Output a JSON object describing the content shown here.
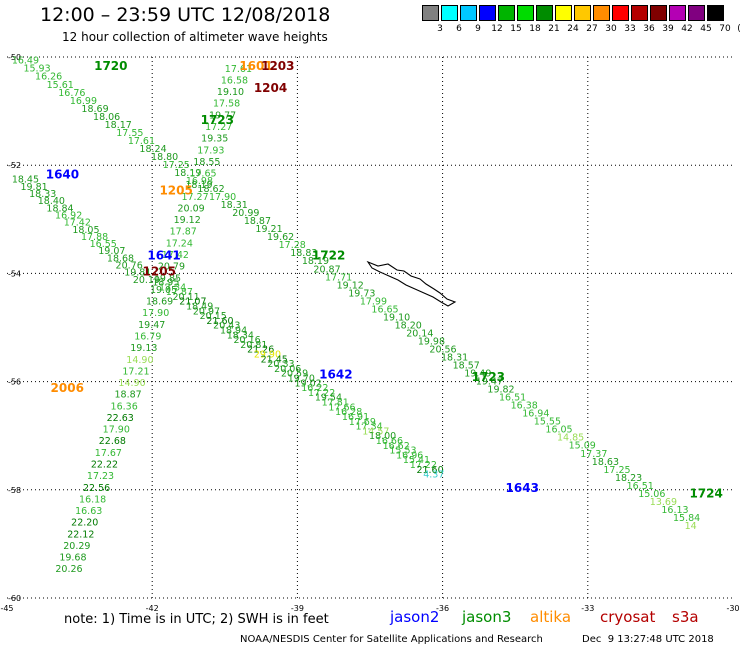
{
  "title": "12:00 – 23:59 UTC 12/08/2018",
  "subtitle": "12 hour collection of altimeter wave heights",
  "scale": {
    "colors": [
      "#808080",
      "#00ffff",
      "#00c8ff",
      "#0000ff",
      "#00b400",
      "#00dc00",
      "#008c00",
      "#ffff00",
      "#ffc800",
      "#ff8c00",
      "#ff0000",
      "#b40000",
      "#800000",
      "#b400b4",
      "#800080",
      "#000000"
    ],
    "labels": [
      "3",
      "6",
      "9",
      "12",
      "15",
      "18",
      "21",
      "24",
      "27",
      "30",
      "33",
      "36",
      "39",
      "42",
      "45",
      "70",
      "(ft)"
    ]
  },
  "axes": {
    "lat_labels": [
      "-50",
      "-52",
      "-54",
      "-56",
      "-58",
      "-60"
    ],
    "lon_labels": [
      "-45",
      "-42",
      "-39",
      "-36",
      "-33",
      "-30"
    ]
  },
  "note": {
    "part1": "note:  1) Time is in UTC;  2) SWH is in feet"
  },
  "legend": [
    {
      "name": "jason2",
      "color": "#0000ff"
    },
    {
      "name": "jason3",
      "color": "#008c00"
    },
    {
      "name": "altika",
      "color": "#ff8c00"
    },
    {
      "name": "cryosat",
      "color": "#b40000"
    },
    {
      "name": "s3a",
      "color": "#b40000"
    }
  ],
  "credit": "NOAA/NESDIS Center for Satellite Applications and Research",
  "stamp": "Dec  9 13:27:48 UTC 2018",
  "track_labels": [
    {
      "text": "1720",
      "lon": -43.2,
      "lat": -50.15,
      "color": "#008c00"
    },
    {
      "text": "1601",
      "lon": -40.2,
      "lat": -50.15,
      "color": "#ff8c00"
    },
    {
      "text": "1203",
      "lon": -39.75,
      "lat": -50.15,
      "color": "#800000"
    },
    {
      "text": "1204",
      "lon": -39.9,
      "lat": -50.55,
      "color": "#800000"
    },
    {
      "text": "1723",
      "lon": -41.0,
      "lat": -51.15,
      "color": "#008c00"
    },
    {
      "text": "1640",
      "lon": -44.2,
      "lat": -52.15,
      "color": "#0000ff"
    },
    {
      "text": "1205",
      "lon": -41.85,
      "lat": -52.45,
      "color": "#ff8c00"
    },
    {
      "text": "1641",
      "lon": -42.1,
      "lat": -53.65,
      "color": "#0000ff"
    },
    {
      "text": "1205",
      "lon": -42.2,
      "lat": -53.95,
      "color": "#800000"
    },
    {
      "text": "1722",
      "lon": -38.7,
      "lat": -53.65,
      "color": "#008c00"
    },
    {
      "text": "1642",
      "lon": -38.55,
      "lat": -55.85,
      "color": "#0000ff"
    },
    {
      "text": "2006",
      "lon": -44.1,
      "lat": -56.1,
      "color": "#ff8c00"
    },
    {
      "text": "1723",
      "lon": -35.4,
      "lat": -55.9,
      "color": "#008c00"
    },
    {
      "text": "1643",
      "lon": -34.7,
      "lat": -57.95,
      "color": "#0000ff"
    },
    {
      "text": "1724",
      "lon": -30.9,
      "lat": -58.05,
      "color": "#008c00"
    }
  ],
  "tracks": [
    {
      "name": "jason3-1720",
      "color": "#008c00",
      "lon0": -44.9,
      "lat0": -50.05,
      "lon1": -31.0,
      "lat1": -58.65,
      "values": [
        "16.49",
        "15.93",
        "16.26",
        "15.61",
        "16.76",
        "16.99",
        "18.69",
        "18.06",
        "18.17",
        "17.55",
        "17.61",
        "18.24",
        "18.80",
        "17.25",
        "18.19",
        "16.98",
        "18.62",
        "17.90",
        "18.31",
        "20.99",
        "18.87",
        "19.21",
        "19.62",
        "17.28",
        "18.83",
        "18.19",
        "20.87",
        "17.71",
        "19.12",
        "19.73",
        "17.99",
        "16.65",
        "19.10",
        "18.20",
        "20.14",
        "19.98",
        "20.56",
        "18.31",
        "18.57",
        "19.49",
        "19.47",
        "19.82",
        "16.51",
        "16.38",
        "16.94",
        "15.55",
        "16.05",
        "14.85",
        "15.09",
        "17.37",
        "18.63",
        "17.25",
        "18.23",
        "16.51",
        "15.06",
        "13.69",
        "16.13",
        "15.84",
        "14"
      ]
    },
    {
      "name": "jason3-1723",
      "color": "#008c00",
      "lon0": -44.0,
      "lat0": -59.45,
      "lon1": -40.5,
      "lat1": -50.2,
      "values": [
        "20.26",
        "19.68",
        "20.29",
        "22.12",
        "22.20",
        "16.63",
        "16.18",
        "22.56",
        "17.23",
        "22.22",
        "17.67",
        "22.68",
        "17.90",
        "22.63",
        "16.36",
        "18.87",
        "14.90",
        "17.21",
        "14.90",
        "19.13",
        "16.79",
        "19.47",
        "17.90",
        "18.69",
        "19.05",
        "19.85",
        "20.79",
        "17.42",
        "17.24",
        "17.87",
        "19.12",
        "20.09",
        "17.27",
        "18.19",
        "17.65",
        "18.55",
        "17.93",
        "19.35",
        "17.27",
        "19.77",
        "17.58",
        "19.10",
        "16.58",
        "17.61"
      ]
    },
    {
      "name": "jason2-1640",
      "color": "#008c00",
      "lon0": -44.9,
      "lat0": -52.25,
      "lon1": -42.4,
      "lat1": -54.1,
      "values": [
        "18.45",
        "19.81",
        "18.33",
        "18.40",
        "18.84",
        "16.92",
        "17.42",
        "18.05",
        "17.88",
        "16.55",
        "19.07",
        "18.68",
        "20.76",
        "19.81",
        "20.19"
      ]
    },
    {
      "name": "jason2-1641",
      "color": "#008c00",
      "lon0": -42.0,
      "lat0": -54.15,
      "lon1": -36.4,
      "lat1": -57.7,
      "values": [
        "18.95",
        "17.34",
        "17.87",
        "20.11",
        "21.07",
        "18.49",
        "20.97",
        "20.15",
        "21.60",
        "20.43",
        "18.94",
        "18.34",
        "20.16",
        "20.81",
        "21.26",
        "29.90",
        "21.45",
        "20.33",
        "20.06",
        "20.59",
        "19.70",
        "19.02",
        "16.22",
        "17.22",
        "19.54",
        "17.81",
        "17.66",
        "16.28",
        "16.91",
        "17.69",
        "17.34",
        "14.57",
        "18.00",
        "16.66",
        "16.62",
        "15.53",
        "16.96",
        "15.41",
        "17.22",
        "21.60",
        "4.37"
      ]
    }
  ]
}
